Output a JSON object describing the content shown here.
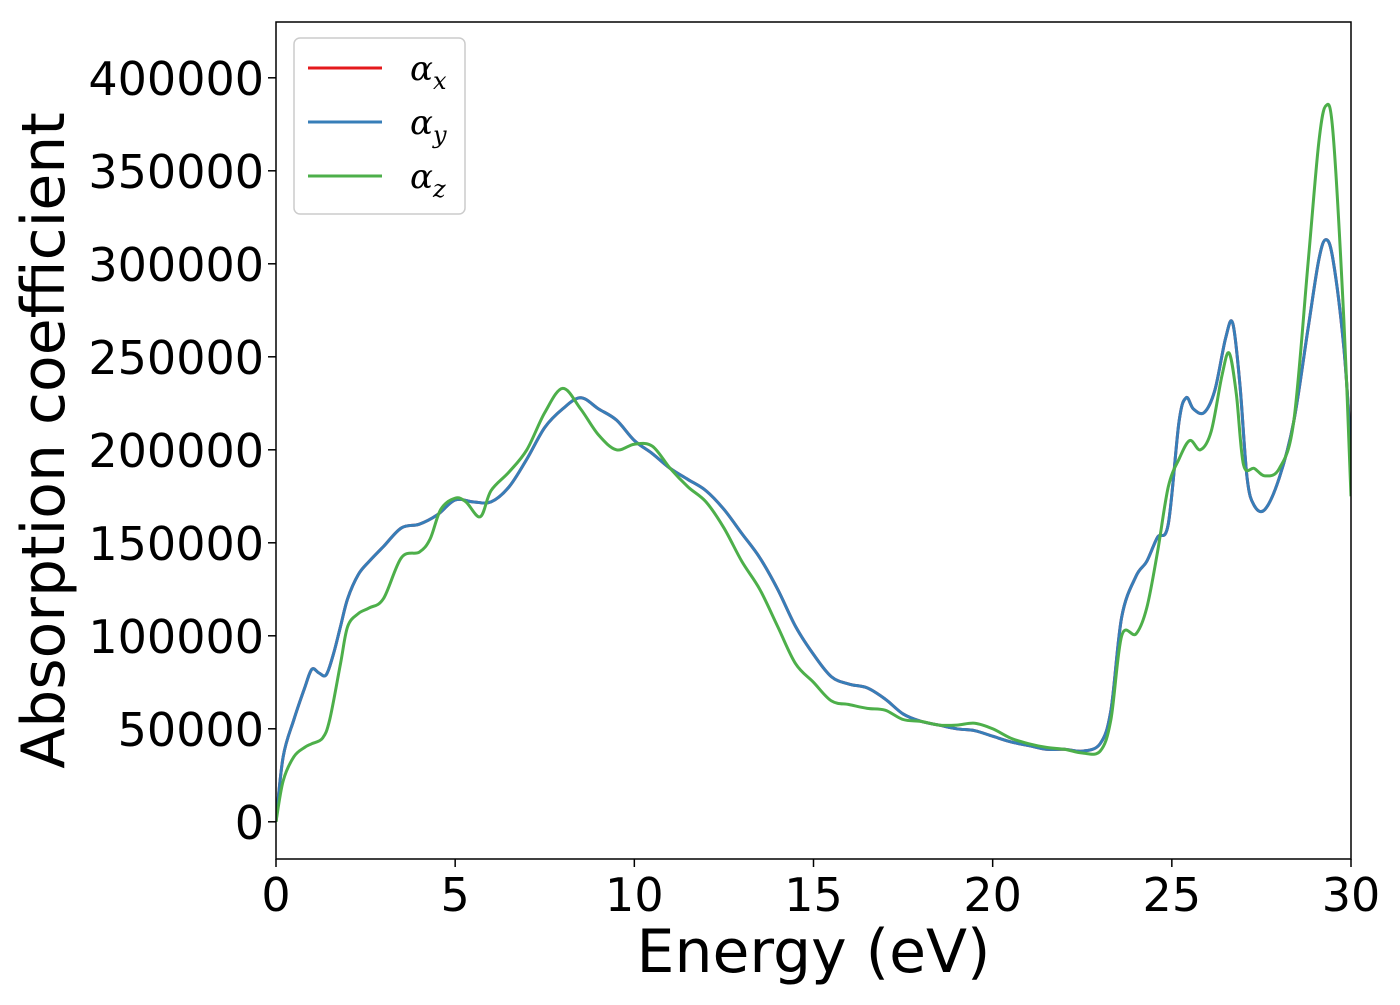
{
  "chart_data": {
    "type": "line",
    "title": "",
    "xlabel": "Energy (eV)",
    "ylabel": "Absorption coefficient",
    "xlim": [
      0,
      30
    ],
    "ylim": [
      -20000,
      430000
    ],
    "xticks": [
      0,
      5,
      10,
      15,
      20,
      25,
      30
    ],
    "xtick_labels": [
      "0",
      "5",
      "10",
      "15",
      "20",
      "25",
      "30"
    ],
    "yticks": [
      0,
      50000,
      100000,
      150000,
      200000,
      250000,
      300000,
      350000,
      400000
    ],
    "ytick_labels": [
      "0",
      "50000",
      "100000",
      "150000",
      "200000",
      "250000",
      "300000",
      "350000",
      "400000"
    ],
    "grid": false,
    "legend_position": "top-left",
    "series": [
      {
        "name": "α_x",
        "label_base": "α",
        "label_sub": "x",
        "color": "#e41a1c",
        "x": [
          0,
          0.2,
          0.5,
          0.8,
          1.0,
          1.2,
          1.4,
          1.6,
          1.8,
          2.0,
          2.3,
          2.6,
          3.0,
          3.5,
          4.0,
          4.5,
          5.0,
          5.5,
          6.0,
          6.5,
          7.0,
          7.5,
          8.0,
          8.5,
          9.0,
          9.5,
          10.0,
          10.5,
          11.0,
          11.5,
          12.0,
          12.5,
          13.0,
          13.5,
          14.0,
          14.5,
          15.0,
          15.5,
          16.0,
          16.5,
          17.0,
          17.5,
          18.0,
          18.5,
          19.0,
          19.5,
          20.0,
          20.5,
          21.0,
          21.5,
          22.0,
          22.5,
          23.0,
          23.3,
          23.6,
          24.0,
          24.3,
          24.6,
          24.9,
          25.2,
          25.4,
          25.6,
          25.9,
          26.2,
          26.5,
          26.7,
          26.9,
          27.1,
          27.3,
          27.6,
          28.0,
          28.4,
          28.8,
          29.1,
          29.3,
          29.5,
          29.8,
          30.0
        ],
        "y": [
          0,
          35000,
          55000,
          72000,
          82000,
          80000,
          79000,
          90000,
          105000,
          120000,
          133000,
          140000,
          148000,
          158000,
          160000,
          165000,
          173000,
          172000,
          172000,
          180000,
          195000,
          212000,
          222000,
          228000,
          222000,
          216000,
          205000,
          198000,
          190000,
          184000,
          178000,
          168000,
          155000,
          142000,
          125000,
          105000,
          90000,
          78000,
          74000,
          72000,
          66000,
          58000,
          54000,
          52000,
          50000,
          49000,
          46000,
          43000,
          41000,
          39000,
          39000,
          38000,
          42000,
          60000,
          110000,
          132000,
          140000,
          153000,
          160000,
          215000,
          228000,
          222000,
          220000,
          232000,
          260000,
          268000,
          235000,
          185000,
          170000,
          168000,
          185000,
          215000,
          265000,
          302000,
          313000,
          302000,
          255000,
          200000
        ]
      },
      {
        "name": "α_y",
        "label_base": "α",
        "label_sub": "y",
        "color": "#377eb8",
        "x": [
          0,
          0.2,
          0.5,
          0.8,
          1.0,
          1.2,
          1.4,
          1.6,
          1.8,
          2.0,
          2.3,
          2.6,
          3.0,
          3.5,
          4.0,
          4.5,
          5.0,
          5.5,
          6.0,
          6.5,
          7.0,
          7.5,
          8.0,
          8.5,
          9.0,
          9.5,
          10.0,
          10.5,
          11.0,
          11.5,
          12.0,
          12.5,
          13.0,
          13.5,
          14.0,
          14.5,
          15.0,
          15.5,
          16.0,
          16.5,
          17.0,
          17.5,
          18.0,
          18.5,
          19.0,
          19.5,
          20.0,
          20.5,
          21.0,
          21.5,
          22.0,
          22.5,
          23.0,
          23.3,
          23.6,
          24.0,
          24.3,
          24.6,
          24.9,
          25.2,
          25.4,
          25.6,
          25.9,
          26.2,
          26.5,
          26.7,
          26.9,
          27.1,
          27.3,
          27.6,
          28.0,
          28.4,
          28.8,
          29.1,
          29.3,
          29.5,
          29.8,
          30.0
        ],
        "y": [
          0,
          35000,
          55000,
          72000,
          82000,
          80000,
          79000,
          90000,
          105000,
          120000,
          133000,
          140000,
          148000,
          158000,
          160000,
          165000,
          173000,
          172000,
          172000,
          180000,
          195000,
          212000,
          222000,
          228000,
          222000,
          216000,
          205000,
          198000,
          190000,
          184000,
          178000,
          168000,
          155000,
          142000,
          125000,
          105000,
          90000,
          78000,
          74000,
          72000,
          66000,
          58000,
          54000,
          52000,
          50000,
          49000,
          46000,
          43000,
          41000,
          39000,
          39000,
          38000,
          42000,
          60000,
          110000,
          132000,
          140000,
          153000,
          160000,
          215000,
          228000,
          222000,
          220000,
          232000,
          260000,
          268000,
          235000,
          185000,
          170000,
          168000,
          185000,
          215000,
          265000,
          302000,
          313000,
          302000,
          255000,
          200000
        ]
      },
      {
        "name": "α_z",
        "label_base": "α",
        "label_sub": "z",
        "color": "#4daf4a",
        "x": [
          0,
          0.2,
          0.5,
          0.8,
          1.0,
          1.3,
          1.5,
          1.8,
          2.0,
          2.3,
          2.6,
          3.0,
          3.5,
          4.0,
          4.3,
          4.6,
          5.0,
          5.3,
          5.7,
          6.0,
          6.5,
          7.0,
          7.5,
          8.0,
          8.5,
          9.0,
          9.5,
          10.0,
          10.5,
          11.0,
          11.5,
          12.0,
          12.5,
          13.0,
          13.5,
          14.0,
          14.5,
          15.0,
          15.5,
          16.0,
          16.5,
          17.0,
          17.5,
          18.0,
          18.5,
          19.0,
          19.5,
          20.0,
          20.5,
          21.0,
          21.5,
          22.0,
          22.5,
          23.0,
          23.3,
          23.6,
          24.0,
          24.3,
          24.6,
          24.9,
          25.2,
          25.5,
          25.8,
          26.1,
          26.4,
          26.6,
          26.8,
          27.0,
          27.3,
          27.6,
          28.0,
          28.4,
          28.8,
          29.1,
          29.3,
          29.5,
          29.8,
          30.0
        ],
        "y": [
          0,
          22000,
          35000,
          40000,
          42000,
          45000,
          55000,
          85000,
          105000,
          112000,
          115000,
          120000,
          142000,
          145000,
          152000,
          168000,
          174000,
          172000,
          164000,
          178000,
          188000,
          200000,
          220000,
          233000,
          222000,
          208000,
          200000,
          203000,
          202000,
          190000,
          180000,
          172000,
          158000,
          140000,
          125000,
          105000,
          85000,
          75000,
          65000,
          63000,
          61000,
          60000,
          55000,
          54000,
          52000,
          52000,
          53000,
          50000,
          45000,
          42000,
          40000,
          39000,
          37000,
          38000,
          55000,
          100000,
          101000,
          115000,
          145000,
          180000,
          195000,
          205000,
          200000,
          210000,
          240000,
          252000,
          230000,
          192000,
          190000,
          186000,
          190000,
          215000,
          300000,
          365000,
          385000,
          370000,
          270000,
          175000
        ]
      }
    ]
  }
}
